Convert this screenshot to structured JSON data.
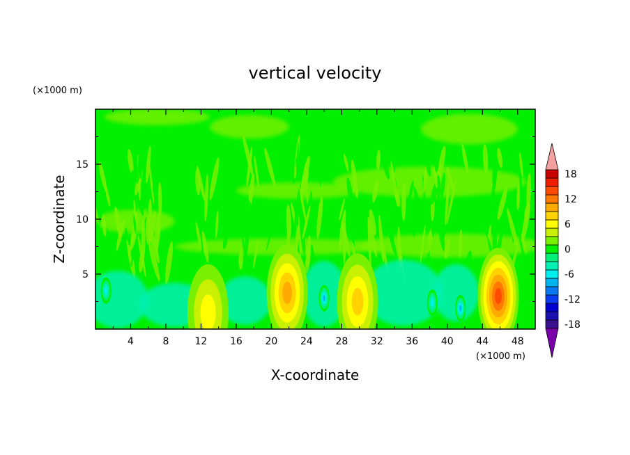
{
  "chart_data": {
    "type": "heatmap",
    "title": "vertical velocity",
    "xlabel": "X-coordinate",
    "ylabel": "Z-coordinate",
    "x_unit": "(×1000 m)",
    "y_unit": "(×1000 m)",
    "xlim": [
      0,
      50
    ],
    "ylim": [
      0,
      20
    ],
    "x_ticks": [
      "4",
      "8",
      "12",
      "16",
      "20",
      "24",
      "28",
      "32",
      "36",
      "40",
      "44",
      "48"
    ],
    "x_tick_values": [
      4,
      8,
      12,
      16,
      20,
      24,
      28,
      32,
      36,
      40,
      44,
      48
    ],
    "y_ticks": [
      "5",
      "10",
      "15"
    ],
    "y_tick_values": [
      5,
      10,
      15
    ],
    "colorbar": {
      "range": [
        -21,
        21
      ],
      "step": 2,
      "labels": [
        "18",
        "12",
        "6",
        "0",
        "-6",
        "-12",
        "-18"
      ],
      "label_values": [
        18,
        12,
        6,
        0,
        -6,
        -12,
        -18
      ],
      "colors": [
        "#7a00aa",
        "#3a1090",
        "#1a10b0",
        "#0000d0",
        "#0a3cf0",
        "#0a78f0",
        "#00b4f0",
        "#00f0f0",
        "#00f0b4",
        "#00f078",
        "#00f000",
        "#78f000",
        "#c8f000",
        "#ffff00",
        "#ffd200",
        "#ffaa00",
        "#ff7800",
        "#ff4b00",
        "#f01e00",
        "#c80000",
        "#f4a0a0"
      ]
    },
    "cells": {
      "background": -1,
      "features": [
        {
          "x": 21.8,
          "z": 3.3,
          "value": 9,
          "kind": "updraft"
        },
        {
          "x": 29.8,
          "z": 2.5,
          "value": 6,
          "kind": "updraft"
        },
        {
          "x": 12.8,
          "z": 1.5,
          "value": 5,
          "kind": "updraft"
        },
        {
          "x": 45.8,
          "z": 3.0,
          "value": 12,
          "kind": "updraft"
        },
        {
          "x": 26.0,
          "z": 2.8,
          "value": -9,
          "kind": "downdraft"
        },
        {
          "x": 41.5,
          "z": 1.9,
          "value": -8,
          "kind": "downdraft"
        },
        {
          "x": 38.3,
          "z": 2.4,
          "value": -7,
          "kind": "downdraft"
        },
        {
          "x": 1.2,
          "z": 3.5,
          "value": -7,
          "kind": "downdraft"
        }
      ]
    }
  }
}
